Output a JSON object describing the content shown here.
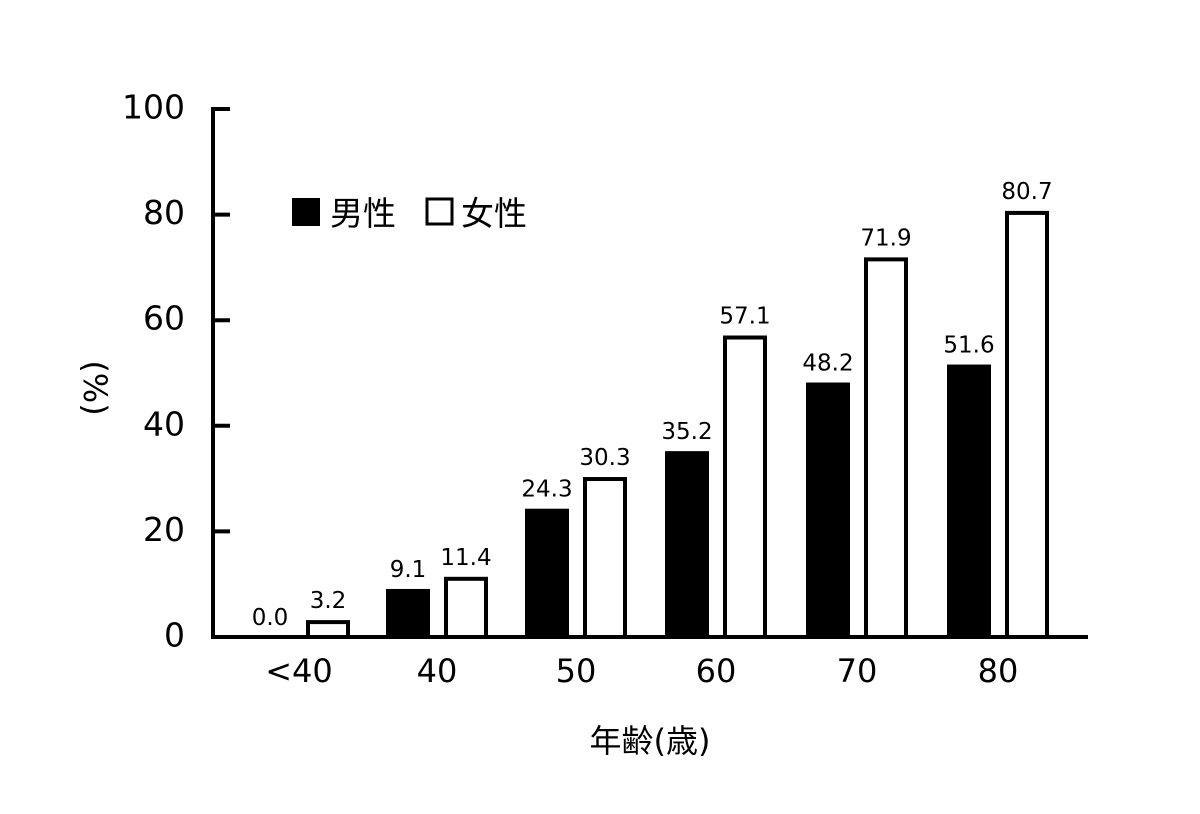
{
  "chart_data": {
    "type": "bar",
    "title": "",
    "xlabel": "年齢(歳)",
    "ylabel": "(%)",
    "ylim": [
      0,
      100
    ],
    "yticks": [
      0,
      20,
      40,
      60,
      80,
      100
    ],
    "grid": false,
    "legend_position": "upper-left-inside",
    "categories": [
      "<40",
      "40",
      "50",
      "60",
      "70",
      "80"
    ],
    "series": [
      {
        "name": "男性",
        "style": "filled",
        "color": "#000000",
        "values": [
          0.0,
          9.1,
          24.3,
          35.2,
          48.2,
          51.6
        ],
        "labels": [
          "0.0",
          "9.1",
          "24.3",
          "35.2",
          "48.2",
          "51.6"
        ]
      },
      {
        "name": "女性",
        "style": "outline",
        "color": "#ffffff",
        "edgecolor": "#000000",
        "values": [
          3.2,
          11.4,
          30.3,
          57.1,
          71.9,
          80.7
        ],
        "labels": [
          "3.2",
          "11.4",
          "30.3",
          "57.1",
          "71.9",
          "80.7"
        ]
      }
    ]
  },
  "legend": {
    "male_label": "男性",
    "female_label": "女性"
  },
  "axes": {
    "x_title": "年齢(歳)",
    "y_title": "(%)"
  }
}
